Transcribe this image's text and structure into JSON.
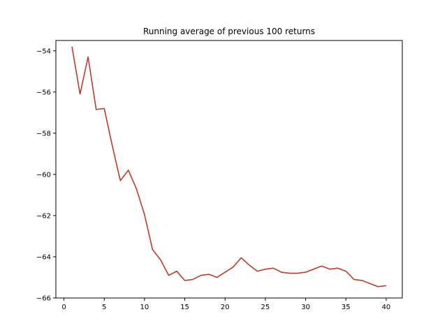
{
  "chart_data": {
    "type": "line",
    "title": "Running average of previous 100 returns",
    "xlabel": "",
    "ylabel": "",
    "xlim": [
      -1,
      42
    ],
    "ylim": [
      -66,
      -53.5
    ],
    "xticks": [
      0,
      5,
      10,
      15,
      20,
      25,
      30,
      35,
      40
    ],
    "yticks": [
      -66,
      -64,
      -62,
      -60,
      -58,
      -56,
      -54
    ],
    "xtick_labels": [
      "0",
      "5",
      "10",
      "15",
      "20",
      "25",
      "30",
      "35",
      "40"
    ],
    "ytick_labels": [
      "−66",
      "−64",
      "−62",
      "−60",
      "−58",
      "−56",
      "−54"
    ],
    "grid": false,
    "series": [
      {
        "color": "#c0392b",
        "x": [
          1,
          2,
          3,
          4,
          5,
          6,
          7,
          8,
          9,
          10,
          11,
          12,
          13,
          14,
          15,
          16,
          17,
          18,
          19,
          20,
          21,
          22,
          23,
          24,
          25,
          26,
          27,
          28,
          29,
          30,
          31,
          32,
          33,
          34,
          35,
          36,
          37,
          38,
          39,
          40
        ],
        "y": [
          -53.8,
          -56.1,
          -54.3,
          -56.85,
          -56.8,
          -58.6,
          -60.3,
          -59.8,
          -60.7,
          -61.95,
          -63.65,
          -64.15,
          -64.9,
          -64.7,
          -65.15,
          -65.1,
          -64.9,
          -64.85,
          -65.0,
          -64.75,
          -64.5,
          -64.05,
          -64.4,
          -64.7,
          -64.6,
          -64.55,
          -64.75,
          -64.8,
          -64.8,
          -64.75,
          -64.6,
          -64.45,
          -64.6,
          -64.55,
          -64.7,
          -65.1,
          -65.15,
          -65.3,
          -65.45,
          -65.4
        ]
      }
    ]
  }
}
